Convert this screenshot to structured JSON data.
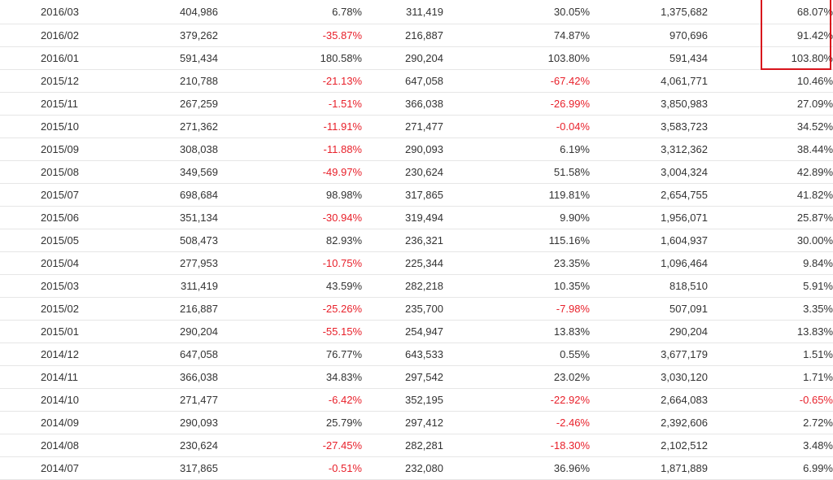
{
  "table": {
    "rows": [
      {
        "month": "2016/03",
        "v1": "404,986",
        "p1": "6.78%",
        "v2": "311,419",
        "p2": "30.05%",
        "v3": "1,375,682",
        "p3": "68.07%"
      },
      {
        "month": "2016/02",
        "v1": "379,262",
        "p1": "-35.87%",
        "v2": "216,887",
        "p2": "74.87%",
        "v3": "970,696",
        "p3": "91.42%"
      },
      {
        "month": "2016/01",
        "v1": "591,434",
        "p1": "180.58%",
        "v2": "290,204",
        "p2": "103.80%",
        "v3": "591,434",
        "p3": "103.80%"
      },
      {
        "month": "2015/12",
        "v1": "210,788",
        "p1": "-21.13%",
        "v2": "647,058",
        "p2": "-67.42%",
        "v3": "4,061,771",
        "p3": "10.46%"
      },
      {
        "month": "2015/11",
        "v1": "267,259",
        "p1": "-1.51%",
        "v2": "366,038",
        "p2": "-26.99%",
        "v3": "3,850,983",
        "p3": "27.09%"
      },
      {
        "month": "2015/10",
        "v1": "271,362",
        "p1": "-11.91%",
        "v2": "271,477",
        "p2": "-0.04%",
        "v3": "3,583,723",
        "p3": "34.52%"
      },
      {
        "month": "2015/09",
        "v1": "308,038",
        "p1": "-11.88%",
        "v2": "290,093",
        "p2": "6.19%",
        "v3": "3,312,362",
        "p3": "38.44%"
      },
      {
        "month": "2015/08",
        "v1": "349,569",
        "p1": "-49.97%",
        "v2": "230,624",
        "p2": "51.58%",
        "v3": "3,004,324",
        "p3": "42.89%"
      },
      {
        "month": "2015/07",
        "v1": "698,684",
        "p1": "98.98%",
        "v2": "317,865",
        "p2": "119.81%",
        "v3": "2,654,755",
        "p3": "41.82%"
      },
      {
        "month": "2015/06",
        "v1": "351,134",
        "p1": "-30.94%",
        "v2": "319,494",
        "p2": "9.90%",
        "v3": "1,956,071",
        "p3": "25.87%"
      },
      {
        "month": "2015/05",
        "v1": "508,473",
        "p1": "82.93%",
        "v2": "236,321",
        "p2": "115.16%",
        "v3": "1,604,937",
        "p3": "30.00%"
      },
      {
        "month": "2015/04",
        "v1": "277,953",
        "p1": "-10.75%",
        "v2": "225,344",
        "p2": "23.35%",
        "v3": "1,096,464",
        "p3": "9.84%"
      },
      {
        "month": "2015/03",
        "v1": "311,419",
        "p1": "43.59%",
        "v2": "282,218",
        "p2": "10.35%",
        "v3": "818,510",
        "p3": "5.91%"
      },
      {
        "month": "2015/02",
        "v1": "216,887",
        "p1": "-25.26%",
        "v2": "235,700",
        "p2": "-7.98%",
        "v3": "507,091",
        "p3": "3.35%"
      },
      {
        "month": "2015/01",
        "v1": "290,204",
        "p1": "-55.15%",
        "v2": "254,947",
        "p2": "13.83%",
        "v3": "290,204",
        "p3": "13.83%"
      },
      {
        "month": "2014/12",
        "v1": "647,058",
        "p1": "76.77%",
        "v2": "643,533",
        "p2": "0.55%",
        "v3": "3,677,179",
        "p3": "1.51%"
      },
      {
        "month": "2014/11",
        "v1": "366,038",
        "p1": "34.83%",
        "v2": "297,542",
        "p2": "23.02%",
        "v3": "3,030,120",
        "p3": "1.71%"
      },
      {
        "month": "2014/10",
        "v1": "271,477",
        "p1": "-6.42%",
        "v2": "352,195",
        "p2": "-22.92%",
        "v3": "2,664,083",
        "p3": "-0.65%"
      },
      {
        "month": "2014/09",
        "v1": "290,093",
        "p1": "25.79%",
        "v2": "297,412",
        "p2": "-2.46%",
        "v3": "2,392,606",
        "p3": "2.72%"
      },
      {
        "month": "2014/08",
        "v1": "230,624",
        "p1": "-27.45%",
        "v2": "282,281",
        "p2": "-18.30%",
        "v3": "2,102,512",
        "p3": "3.48%"
      },
      {
        "month": "2014/07",
        "v1": "317,865",
        "p1": "-0.51%",
        "v2": "232,080",
        "p2": "36.96%",
        "v3": "1,871,889",
        "p3": "6.99%"
      }
    ]
  },
  "colors": {
    "negative": "#e8212b",
    "text": "#333333",
    "highlight": "#d8141c"
  }
}
